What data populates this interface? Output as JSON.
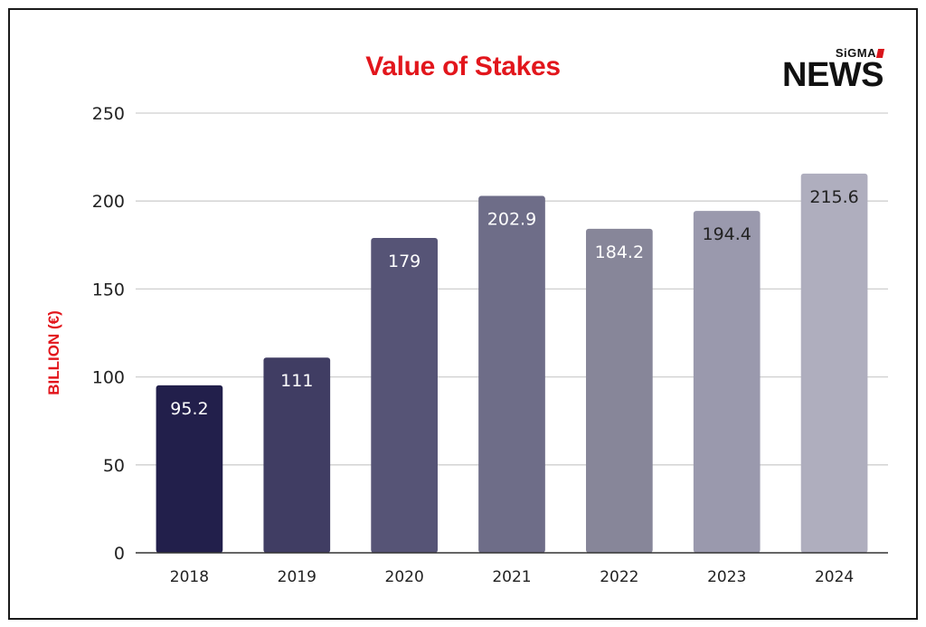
{
  "brand": {
    "top": "SiGMA",
    "main": "NEWS"
  },
  "colors": {
    "title": "#e2161c",
    "ylabel": "#e2161c",
    "grid": "#cfcfcf",
    "axis": "#333333"
  },
  "chart_data": {
    "type": "bar",
    "title": "Value of Stakes",
    "xlabel": "",
    "ylabel": "BILLION (€)",
    "categories": [
      "2018",
      "2019",
      "2020",
      "2021",
      "2022",
      "2023",
      "2024"
    ],
    "values": [
      95.2,
      111,
      179,
      202.9,
      184.2,
      194.4,
      215.6
    ],
    "value_labels": [
      "95.2",
      "111",
      "179",
      "202.9",
      "184.2",
      "194.4",
      "215.6"
    ],
    "bar_colors": [
      "#221f4b",
      "#403d63",
      "#565476",
      "#6e6d88",
      "#878699",
      "#9a99ad",
      "#afaebe"
    ],
    "label_colors": [
      "#ffffff",
      "#ffffff",
      "#ffffff",
      "#ffffff",
      "#ffffff",
      "#222222",
      "#222222"
    ],
    "ylim": [
      0,
      250
    ],
    "yticks": [
      "0",
      "50",
      "100",
      "150",
      "200",
      "250"
    ],
    "grid": true,
    "legend": "none"
  }
}
